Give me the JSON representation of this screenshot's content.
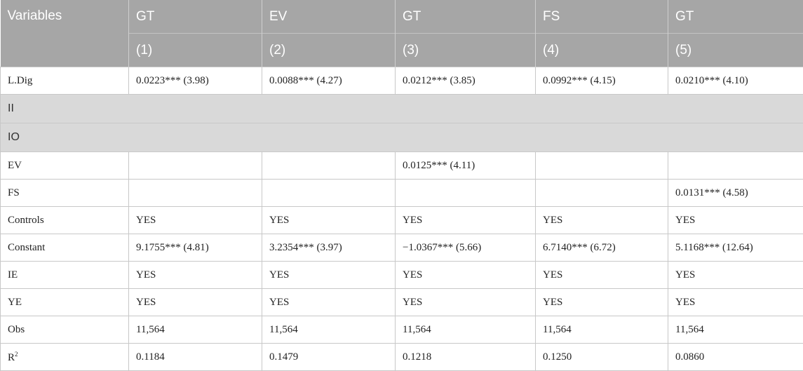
{
  "header": {
    "variables_label": "Variables",
    "columns": [
      {
        "name": "GT",
        "num": "(1)"
      },
      {
        "name": "EV",
        "num": "(2)"
      },
      {
        "name": "GT",
        "num": "(3)"
      },
      {
        "name": "FS",
        "num": "(4)"
      },
      {
        "name": "GT",
        "num": "(5)"
      }
    ]
  },
  "rows": {
    "ldig": {
      "label": "L.Dig",
      "cells": [
        "0.0223*** (3.98)",
        "0.0088*** (4.27)",
        "0.0212*** (3.85)",
        "0.0992*** (4.15)",
        "0.0210*** (4.10)"
      ]
    },
    "ii": {
      "label": "II"
    },
    "io": {
      "label": "IO"
    },
    "ev": {
      "label": "EV",
      "cells": [
        "",
        "",
        "0.0125*** (4.11)",
        "",
        ""
      ]
    },
    "fs": {
      "label": "FS",
      "cells": [
        "",
        "",
        "",
        "",
        "0.0131*** (4.58)"
      ]
    },
    "controls": {
      "label": "Controls",
      "cells": [
        "YES",
        "YES",
        "YES",
        "YES",
        "YES"
      ]
    },
    "constant": {
      "label": "Constant",
      "cells": [
        "9.1755*** (4.81)",
        "3.2354*** (3.97)",
        "−1.0367*** (5.66)",
        "6.7140*** (6.72)",
        "5.1168*** (12.64)"
      ]
    },
    "ie": {
      "label": "IE",
      "cells": [
        "YES",
        "YES",
        "YES",
        "YES",
        "YES"
      ]
    },
    "ye": {
      "label": "YE",
      "cells": [
        "YES",
        "YES",
        "YES",
        "YES",
        "YES"
      ]
    },
    "obs": {
      "label": "Obs",
      "cells": [
        "11,564",
        "11,564",
        "11,564",
        "11,564",
        "11,564"
      ]
    },
    "r2": {
      "label_base": "R",
      "label_sup": "2",
      "cells": [
        "0.1184",
        "0.1479",
        "0.1218",
        "0.1250",
        "0.0860"
      ]
    }
  }
}
